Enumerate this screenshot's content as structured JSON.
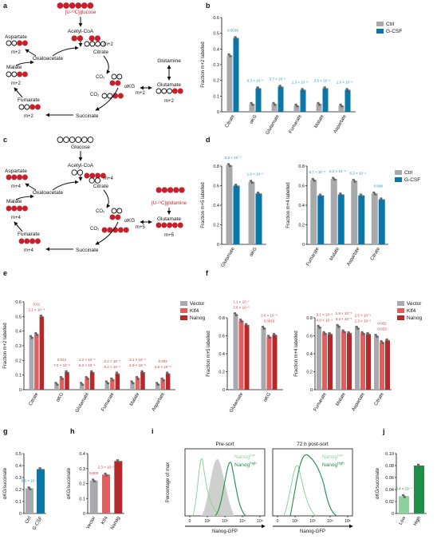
{
  "colors": {
    "ctrl": "#a7a9ac",
    "gcsf": "#0a77a8",
    "vector": "#a7a9ac",
    "klf4": "#e0605f",
    "nanog": "#b8282a",
    "pval_blue": "#1b9ad6",
    "pval_red": "#cf3b3b",
    "label_red": "#d0262c",
    "circle_red": "#c8202a",
    "green_dark": "#1f8f47",
    "green_light": "#8fd19e",
    "fill_grey": "#cfcfcf"
  },
  "panels": {
    "a": {
      "letter": "a",
      "tracer": "[U-¹³C]glucose",
      "metabolites": [
        {
          "label": "Acetyl-CoA"
        },
        {
          "label": "Citrate"
        },
        {
          "label": "m+2"
        },
        {
          "label": "Oxaloacetate"
        },
        {
          "label": "Aspartate"
        },
        {
          "label": "m+2"
        },
        {
          "label": "Malate"
        },
        {
          "label": "m+2"
        },
        {
          "label": "Fumarate"
        },
        {
          "label": "m+2"
        },
        {
          "label": "CO₂"
        },
        {
          "label": "CO₂"
        },
        {
          "label": "αKG"
        },
        {
          "label": "m+2"
        },
        {
          "label": "Succinate"
        },
        {
          "label": "Glutamine"
        },
        {
          "label": "Glutamate"
        },
        {
          "label": "m+2"
        }
      ]
    },
    "c": {
      "letter": "c",
      "tracer": "[U-¹³C]glutamine",
      "metabolites": [
        {
          "label": "Glucose"
        },
        {
          "label": "Acetyl-CoA"
        },
        {
          "label": "m+4"
        },
        {
          "label": "Citrate"
        },
        {
          "label": "Oxaloacetate"
        },
        {
          "label": "Aspartate"
        },
        {
          "label": "m+4"
        },
        {
          "label": "Malate"
        },
        {
          "label": "m+4"
        },
        {
          "label": "Fumarate"
        },
        {
          "label": "m+4"
        },
        {
          "label": "CO₂"
        },
        {
          "label": "CO₂"
        },
        {
          "label": "αKG"
        },
        {
          "label": "m+5"
        },
        {
          "label": "Succinate"
        },
        {
          "label": "Glutamate"
        },
        {
          "label": "m+5"
        }
      ]
    }
  },
  "chart_data": [
    {
      "panel": "b",
      "type": "bar",
      "ylabel": "Fraction m+2 labelled",
      "ylim": [
        0,
        0.6
      ],
      "yticks": [
        "0",
        "0.1",
        "0.2",
        "0.3",
        "0.4",
        "0.5",
        "0.6"
      ],
      "categories": [
        "Citrate",
        "αKG",
        "Glutamate",
        "Fumarate",
        "Malate",
        "Aspartate"
      ],
      "series": [
        {
          "name": "Ctrl",
          "values": [
            0.36,
            0.05,
            0.05,
            0.04,
            0.05,
            0.04
          ]
        },
        {
          "name": "G-CSF",
          "values": [
            0.47,
            0.15,
            0.16,
            0.14,
            0.15,
            0.14
          ]
        }
      ],
      "pvalues": [
        "0.0036",
        "6.3 × 10⁻⁶",
        "3.7 × 10⁻⁶",
        "1.3 × 10⁻⁶",
        "3.5 × 10⁻⁶",
        "1.6 × 10⁻⁶"
      ],
      "legend": "top-right"
    },
    {
      "panel": "d1",
      "type": "bar",
      "ylabel": "Fraction m+5 labelled",
      "ylim": [
        0,
        0.8
      ],
      "yticks": [
        "0",
        "0.2",
        "0.4",
        "0.6",
        "0.8"
      ],
      "categories": [
        "Glutamate",
        "αKG"
      ],
      "series": [
        {
          "name": "Ctrl",
          "values": [
            0.81,
            0.64
          ]
        },
        {
          "name": "G-CSF",
          "values": [
            0.6,
            0.52
          ]
        }
      ],
      "pvalues": [
        "5.8 × 10⁻⁷",
        "1.8 × 10⁻⁵"
      ]
    },
    {
      "panel": "d2",
      "type": "bar",
      "ylabel": "Fraction m+4 labelled",
      "ylim": [
        0,
        0.8
      ],
      "yticks": [
        "0",
        "0.2",
        "0.4",
        "0.6",
        "0.8"
      ],
      "categories": [
        "Fumarate",
        "Malate",
        "Aspartate",
        "Citrate"
      ],
      "series": [
        {
          "name": "Ctrl",
          "values": [
            0.66,
            0.67,
            0.65,
            0.52
          ]
        },
        {
          "name": "G-CSF",
          "values": [
            0.5,
            0.51,
            0.5,
            0.46
          ]
        }
      ],
      "pvalues": [
        "5.7 × 10⁻⁶",
        "5.2 × 10⁻⁶",
        "6.3 × 10⁻⁶",
        "0.008"
      ],
      "legend": "top-right"
    },
    {
      "panel": "e",
      "type": "bar",
      "ylabel": "Fraction m+2 labelled",
      "ylim": [
        0,
        0.6
      ],
      "yticks": [
        "0",
        "0.1",
        "0.2",
        "0.3",
        "0.4",
        "0.5",
        "0.6"
      ],
      "categories": [
        "Citrate",
        "αKG",
        "Glutamate",
        "Fumarate",
        "Malate",
        "Aspartate"
      ],
      "series": [
        {
          "name": "Vector",
          "values": [
            0.36,
            0.04,
            0.04,
            0.05,
            0.05,
            0.04
          ]
        },
        {
          "name": "Klf4",
          "values": [
            0.38,
            0.08,
            0.08,
            0.07,
            0.08,
            0.07
          ]
        },
        {
          "name": "Nanog",
          "values": [
            0.5,
            0.12,
            0.12,
            0.11,
            0.12,
            0.11
          ]
        }
      ],
      "pvalues": [
        [
          "0.61",
          "2.1 × 10⁻⁴"
        ],
        [
          "0.012",
          "7.0 × 10⁻⁶"
        ],
        [
          "1.2 × 10⁻⁴",
          "6.3 × 10⁻⁶"
        ],
        [
          "2.2 × 10⁻⁵",
          "6.2 × 10⁻⁶"
        ],
        [
          "3.1 × 10⁻⁴",
          "2.9 × 10⁻⁶"
        ],
        [
          "0.002",
          "3.6 × 10⁻⁵"
        ]
      ],
      "legend": "top-right"
    },
    {
      "panel": "f1",
      "type": "bar",
      "ylabel": "Fraction m+5 labelled",
      "ylim": [
        0,
        0.8
      ],
      "yticks": [
        "0",
        "0.2",
        "0.4",
        "0.6",
        "0.8"
      ],
      "categories": [
        "Glutamate",
        "αKG"
      ],
      "series": [
        {
          "name": "Vector",
          "values": [
            0.84,
            0.69
          ]
        },
        {
          "name": "Klf4",
          "values": [
            0.77,
            0.59
          ]
        },
        {
          "name": "Nanog",
          "values": [
            0.72,
            0.61
          ]
        }
      ],
      "pvalues": [
        [
          "1.1 × 10⁻⁷",
          "3.6 × 10⁻⁶"
        ],
        [
          "3.6 × 10⁻⁴",
          "0.0016"
        ]
      ]
    },
    {
      "panel": "f2",
      "type": "bar",
      "ylabel": "Fraction m+4 labelled",
      "ylim": [
        0,
        0.8
      ],
      "yticks": [
        "0",
        "0.2",
        "0.4",
        "0.6",
        "0.8"
      ],
      "categories": [
        "Fumarate",
        "Malate",
        "Aspartate",
        "Citrate"
      ],
      "series": [
        {
          "name": "Vector",
          "values": [
            0.7,
            0.71,
            0.69,
            0.6
          ]
        },
        {
          "name": "Klf4",
          "values": [
            0.63,
            0.65,
            0.63,
            0.53
          ]
        },
        {
          "name": "Nanog",
          "values": [
            0.62,
            0.63,
            0.62,
            0.55
          ]
        }
      ],
      "pvalues": [
        [
          "3.1 × 10⁻⁵",
          "4.9 × 10⁻⁵"
        ],
        [
          "1.9 × 10⁻⁵",
          "3.3 × 10⁻⁵"
        ],
        [
          "2.5 × 10⁻⁵",
          "2.3 × 10⁻⁵"
        ],
        [
          "0.002",
          "0.033"
        ]
      ],
      "legend": "top-right"
    },
    {
      "panel": "g",
      "type": "bar",
      "ylabel": "αKG/succinate",
      "ylim": [
        0,
        0.5
      ],
      "yticks": [
        "0",
        "0.1",
        "0.2",
        "0.3",
        "0.4",
        "0.5"
      ],
      "categories": [
        "Ctrl",
        "G-CSF"
      ],
      "values": [
        0.21,
        0.37
      ],
      "pvalues": [
        "6.6 × 10⁻⁴"
      ]
    },
    {
      "panel": "h",
      "type": "bar",
      "ylabel": "αKG/succinate",
      "ylim": [
        0,
        0.4
      ],
      "yticks": [
        "0",
        "0.1",
        "0.2",
        "0.3",
        "0.4"
      ],
      "categories": [
        "Vector",
        "Klf4",
        "Nanog"
      ],
      "values": [
        0.22,
        0.26,
        0.35
      ],
      "pvalues": [
        "0.003",
        "2.3 × 10⁻⁵"
      ]
    },
    {
      "panel": "i",
      "type": "line",
      "ylabel": "Percentage of max",
      "xlabel": "Nanog-GFP",
      "xticks": [
        "0",
        "10²",
        "10³",
        "10⁴",
        "10⁵"
      ],
      "plots": [
        {
          "title": "Pre-sort",
          "legend": [
            "Nanog^low",
            "Nanog^high"
          ]
        },
        {
          "title": "72 h post-sort",
          "legend": [
            "Nanog^low",
            "Nanog^high"
          ]
        }
      ]
    },
    {
      "panel": "j",
      "type": "bar",
      "ylabel": "αKG/succinate",
      "ylim": [
        0,
        0.1
      ],
      "yticks": [
        "0",
        "0.02",
        "0.04",
        "0.06",
        "0.08",
        "0.10"
      ],
      "categories": [
        "Low",
        "High"
      ],
      "values": [
        0.029,
        0.08
      ],
      "pvalues": [
        "3.4 × 10⁻⁷"
      ]
    }
  ],
  "letters": [
    "b",
    "d",
    "e",
    "f",
    "g",
    "h",
    "i",
    "j"
  ]
}
